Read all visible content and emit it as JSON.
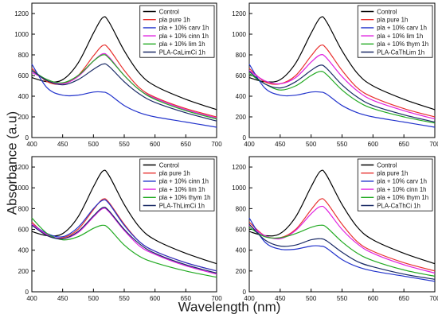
{
  "figure": {
    "ylabel": "Absorbance (a.u)",
    "xlabel": "Wavelength (nm)"
  },
  "chart_data": [
    {
      "type": "line",
      "panel": "top-left",
      "xlim": [
        400,
        700
      ],
      "ylim": [
        0,
        1300
      ],
      "xticks": [
        400,
        450,
        500,
        550,
        600,
        650,
        700
      ],
      "yticks": [
        0,
        200,
        400,
        600,
        800,
        1000,
        1200
      ],
      "legend_position": "top-right",
      "x": [
        400,
        425,
        450,
        475,
        500,
        515,
        525,
        550,
        575,
        600,
        650,
        700
      ],
      "series": [
        {
          "name": "Control",
          "color": "#000000",
          "values": [
            580,
            540,
            560,
            720,
            1010,
            1160,
            1120,
            840,
            620,
            500,
            370,
            270
          ]
        },
        {
          "name": "pla pure 1h",
          "color": "#e8312f",
          "values": [
            670,
            540,
            520,
            600,
            790,
            890,
            860,
            650,
            480,
            390,
            280,
            200
          ]
        },
        {
          "name": "pla + 10% carv 1h",
          "color": "#2233cc",
          "values": [
            710,
            480,
            410,
            410,
            440,
            440,
            420,
            310,
            240,
            200,
            150,
            100
          ]
        },
        {
          "name": "pla + 10% cinn 1h",
          "color": "#e020e0",
          "values": [
            630,
            560,
            520,
            590,
            740,
            810,
            780,
            600,
            460,
            380,
            270,
            190
          ]
        },
        {
          "name": "pla + 10% lim 1h",
          "color": "#22aa22",
          "values": [
            650,
            560,
            530,
            600,
            740,
            800,
            770,
            600,
            460,
            370,
            260,
            180
          ]
        },
        {
          "name": "PLA-CaLimCi 1h",
          "color": "#1a2a66",
          "values": [
            650,
            550,
            510,
            560,
            660,
            710,
            690,
            540,
            420,
            340,
            240,
            160
          ]
        }
      ]
    },
    {
      "type": "line",
      "panel": "top-right",
      "xlim": [
        400,
        700
      ],
      "ylim": [
        0,
        1300
      ],
      "xticks": [
        400,
        450,
        500,
        550,
        600,
        650,
        700
      ],
      "yticks": [
        0,
        200,
        400,
        600,
        800,
        1000,
        1200
      ],
      "legend_position": "top-right",
      "x": [
        400,
        425,
        450,
        475,
        500,
        515,
        525,
        550,
        575,
        600,
        650,
        700
      ],
      "series": [
        {
          "name": "Control",
          "color": "#000000",
          "values": [
            580,
            540,
            560,
            720,
            1010,
            1160,
            1120,
            840,
            620,
            500,
            370,
            270
          ]
        },
        {
          "name": "pla pure 1h",
          "color": "#e8312f",
          "values": [
            670,
            540,
            520,
            600,
            790,
            890,
            860,
            650,
            480,
            390,
            280,
            200
          ]
        },
        {
          "name": "pla + 10% carv 1h",
          "color": "#2233cc",
          "values": [
            710,
            480,
            410,
            410,
            440,
            440,
            420,
            310,
            240,
            200,
            150,
            100
          ]
        },
        {
          "name": "pla + 10% lim 1h",
          "color": "#e020e0",
          "values": [
            650,
            550,
            520,
            580,
            730,
            800,
            770,
            590,
            450,
            360,
            260,
            180
          ]
        },
        {
          "name": "pla + 10% thym 1h",
          "color": "#22aa22",
          "values": [
            620,
            520,
            460,
            500,
            600,
            640,
            610,
            460,
            350,
            280,
            200,
            140
          ]
        },
        {
          "name": "PLA-CaThLim 1h",
          "color": "#1a2a66",
          "values": [
            640,
            520,
            480,
            540,
            650,
            700,
            670,
            510,
            390,
            310,
            220,
            150
          ]
        }
      ]
    },
    {
      "type": "line",
      "panel": "bottom-left",
      "xlim": [
        400,
        700
      ],
      "ylim": [
        0,
        1300
      ],
      "xticks": [
        400,
        450,
        500,
        550,
        600,
        650,
        700
      ],
      "yticks": [
        0,
        200,
        400,
        600,
        800,
        1000,
        1200
      ],
      "legend_position": "top-right",
      "x": [
        400,
        425,
        450,
        475,
        500,
        515,
        525,
        550,
        575,
        600,
        650,
        700
      ],
      "series": [
        {
          "name": "Control",
          "color": "#000000",
          "values": [
            580,
            540,
            560,
            720,
            1010,
            1160,
            1120,
            840,
            620,
            500,
            370,
            270
          ]
        },
        {
          "name": "pla pure 1h",
          "color": "#e8312f",
          "values": [
            670,
            540,
            520,
            600,
            790,
            890,
            860,
            650,
            480,
            390,
            280,
            200
          ]
        },
        {
          "name": "pla + 10% cinn 1h",
          "color": "#2233cc",
          "values": [
            650,
            560,
            530,
            620,
            800,
            880,
            850,
            640,
            480,
            390,
            280,
            200
          ]
        },
        {
          "name": "pla + 10% lim 1h",
          "color": "#e020e0",
          "values": [
            650,
            550,
            510,
            570,
            720,
            800,
            770,
            590,
            440,
            360,
            250,
            170
          ]
        },
        {
          "name": "pla + 10% thym 1h",
          "color": "#22aa22",
          "values": [
            710,
            560,
            500,
            530,
            610,
            640,
            610,
            450,
            340,
            280,
            200,
            140
          ]
        },
        {
          "name": "PLA-ThLimCi 1h",
          "color": "#1a2a66",
          "values": [
            640,
            540,
            510,
            580,
            730,
            810,
            780,
            600,
            460,
            370,
            260,
            180
          ]
        }
      ]
    },
    {
      "type": "line",
      "panel": "bottom-right",
      "xlim": [
        400,
        700
      ],
      "ylim": [
        0,
        1300
      ],
      "xticks": [
        400,
        450,
        500,
        550,
        600,
        650,
        700
      ],
      "yticks": [
        0,
        200,
        400,
        600,
        800,
        1000,
        1200
      ],
      "legend_position": "top-right",
      "x": [
        400,
        425,
        450,
        475,
        500,
        515,
        525,
        550,
        575,
        600,
        650,
        700
      ],
      "series": [
        {
          "name": "Control",
          "color": "#000000",
          "values": [
            580,
            540,
            560,
            720,
            1010,
            1160,
            1120,
            840,
            620,
            500,
            370,
            270
          ]
        },
        {
          "name": "pla pure 1h",
          "color": "#e8312f",
          "values": [
            670,
            540,
            520,
            600,
            790,
            890,
            860,
            650,
            480,
            390,
            280,
            200
          ]
        },
        {
          "name": "pla + 10% carv 1h",
          "color": "#2233cc",
          "values": [
            710,
            480,
            410,
            410,
            440,
            440,
            420,
            310,
            240,
            200,
            150,
            100
          ]
        },
        {
          "name": "pla + 10% cinn 1h",
          "color": "#e020e0",
          "values": [
            640,
            540,
            510,
            590,
            750,
            820,
            790,
            600,
            460,
            370,
            260,
            180
          ]
        },
        {
          "name": "pla + 10% thym 1h",
          "color": "#22aa22",
          "values": [
            620,
            530,
            520,
            560,
            620,
            640,
            620,
            480,
            370,
            300,
            210,
            150
          ]
        },
        {
          "name": "PLA-CaThCi 1h",
          "color": "#1a2a66",
          "values": [
            650,
            500,
            440,
            450,
            500,
            510,
            490,
            380,
            290,
            240,
            170,
            120
          ]
        }
      ]
    }
  ]
}
